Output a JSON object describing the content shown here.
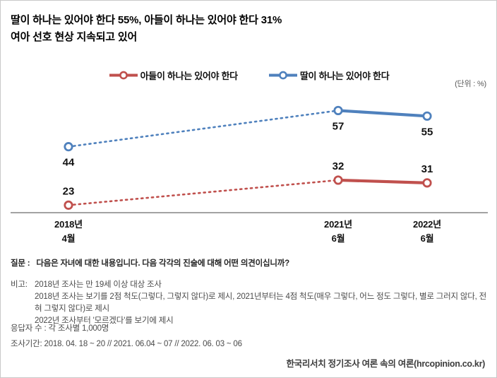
{
  "header": {
    "title_line1": "딸이 하나는 있어야 한다 55%, 아들이 하나는 있어야 한다 31%",
    "title_line2": "여아 선호 현상 지속되고 있어"
  },
  "unit_label": "(단위 : %)",
  "chart_data": {
    "type": "line",
    "categories": [
      "2018년 4월",
      "2021년 6월",
      "2022년 6월"
    ],
    "x_tick_labels": [
      [
        "2018년",
        "4월"
      ],
      [
        "2021년",
        "6월"
      ],
      [
        "2022년",
        "6월"
      ]
    ],
    "series": [
      {
        "name": "아들이 하나는 있어야 한다",
        "values": [
          23,
          32,
          31
        ],
        "color": "#c0504d",
        "label_position": "above"
      },
      {
        "name": "딸이 하나는 있어야 한다",
        "values": [
          44,
          57,
          55
        ],
        "color": "#4f81bd",
        "label_position": "below"
      }
    ],
    "line_style_segments": [
      "dotted",
      "solid"
    ],
    "marker": "open-circle",
    "unit": "%",
    "legend_position": "top",
    "grid": false,
    "axis_color": "#a3a3a3"
  },
  "footnotes": {
    "question_label": "질문 :",
    "question": "다음은 자녀에 대한 내용입니다. 다음 각각의 진술에 대해 어떤 의견이십니까?",
    "note_label": "비고:",
    "notes": [
      "2018년 조사는 만 19세 이상 대상 조사",
      "2018년 조사는 보기를 2점 척도(그렇다, 그렇지 않다)로 제시, 2021년부터는 4점 척도(매우 그렇다, 어느 정도 그렇다, 별로 그러지 않다, 전혀 그렇지 않다)로 제시",
      "2022년 조사부터 '모르겠다'를 보기에 제시"
    ],
    "respondents": "응답자 수 : 각 조사별 1,000명",
    "period": "조사기간: 2018. 04. 18 ~ 20 // 2021. 06.04 ~ 07 // 2022. 06. 03 ~ 06",
    "source": "한국리서치 정기조사 여론 속의 여론(hrcopinion.co.kr)"
  }
}
